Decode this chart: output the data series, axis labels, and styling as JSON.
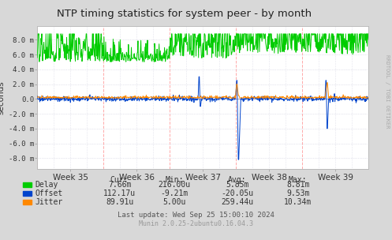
{
  "title": "NTP timing statistics for system peer - by month",
  "ylabel": "seconds",
  "bg_color": "#d8d8d8",
  "plot_bg_color": "#ffffff",
  "grid_color": "#aaaacc",
  "grid_h_color": "#ccccdd",
  "vline_color": "#ffaaaa",
  "x_weeks": [
    "Week 35",
    "Week 36",
    "Week 37",
    "Week 38",
    "Week 39"
  ],
  "ylim_lo": -0.0095,
  "ylim_hi": 0.0098,
  "yticks": [
    -0.008,
    -0.006,
    -0.004,
    -0.002,
    0.0,
    0.002,
    0.004,
    0.006,
    0.008
  ],
  "ytick_labels": [
    "-8.0 m",
    "-6.0 m",
    "-4.0 m",
    "-2.0 m",
    "0.0",
    "2.0 m",
    "4.0 m",
    "6.0 m",
    "8.0 m"
  ],
  "delay_color": "#00cc00",
  "offset_color": "#0044cc",
  "jitter_color": "#ff8800",
  "legend_items": [
    "Delay",
    "Offset",
    "Jitter"
  ],
  "stats_header": [
    "Cur:",
    "Min:",
    "Avg:",
    "Max:"
  ],
  "stats_delay": [
    "7.66m",
    "216.00u",
    "5.85m",
    "8.81m"
  ],
  "stats_offset": [
    "112.17u",
    "-9.21m",
    "-20.05u",
    "9.53m"
  ],
  "stats_jitter": [
    "89.91u",
    "5.00u",
    "259.44u",
    "10.34m"
  ],
  "last_update": "Last update: Wed Sep 25 15:00:10 2024",
  "munin_version": "Munin 2.0.25-2ubuntu0.16.04.3",
  "rrdtool_label": "RRDTOOL / TOBI OETIKER",
  "n_points": 800,
  "seed": 42
}
